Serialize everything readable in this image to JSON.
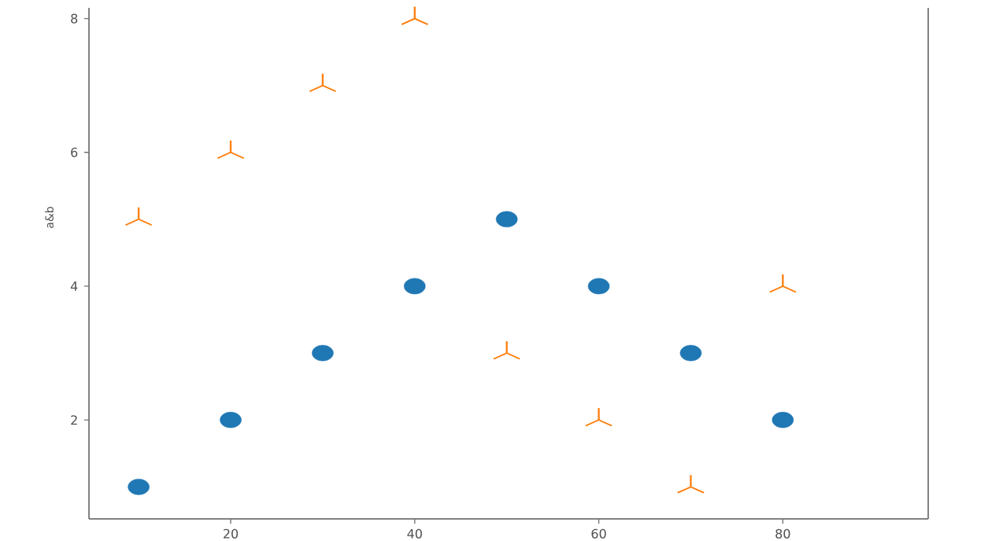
{
  "chart_data": {
    "type": "scatter",
    "ylabel": "a&b",
    "x": [
      10,
      20,
      30,
      40,
      50,
      60,
      70,
      80
    ],
    "series": [
      {
        "color": "#1f77b4",
        "marker": "circle",
        "values": [
          1,
          2,
          3,
          4,
          5,
          4,
          3,
          2
        ]
      },
      {
        "color": "#ff7f0e",
        "marker": "star",
        "values": [
          5,
          6,
          7,
          8,
          3,
          2,
          1,
          4
        ]
      }
    ],
    "xlim": [
      4.6,
      95.8
    ],
    "ylim": [
      0.52,
      8.16
    ],
    "xticks": [
      20,
      40,
      60,
      80
    ],
    "yticks": [
      2,
      4,
      6,
      8
    ]
  }
}
